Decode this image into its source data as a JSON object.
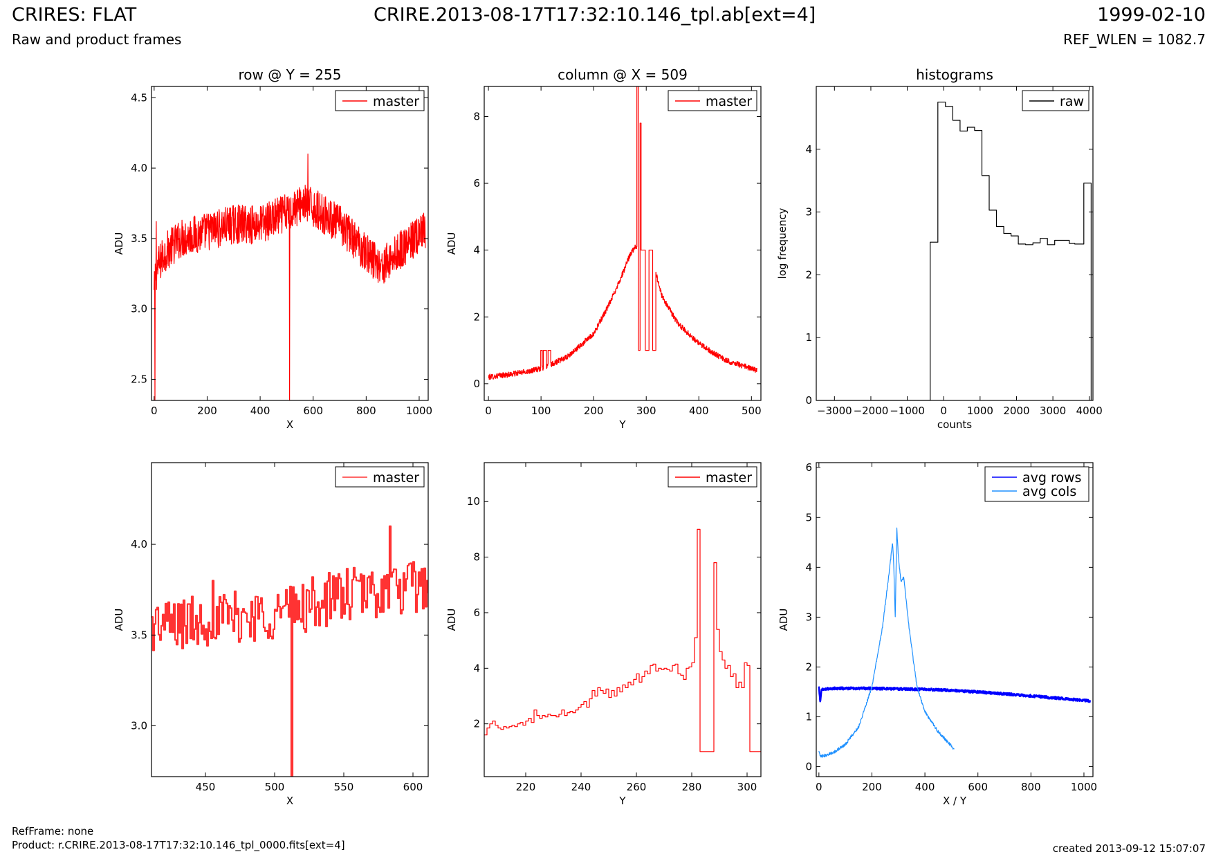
{
  "header": {
    "title_left": "CRIRES: FLAT",
    "subtitle_left": "Raw and product frames",
    "title_center": "CRIRE.2013-08-17T17:32:10.146_tpl.ab[ext=4]",
    "title_right": "1999-02-10",
    "subtitle_right": "REF_WLEN = 1082.7"
  },
  "footer": {
    "refframe": "RefFrame: none",
    "product": "Product: r.CRIRE.2013-08-17T17:32:10.146_tpl_0000.fits[ext=4]",
    "created": "created 2013-09-12 15:07:07"
  },
  "colors": {
    "master": "#ff0000",
    "master_zoom": "#ff3333",
    "raw": "#000000",
    "avg_rows": "#0000ff",
    "avg_cols": "#1e90ff"
  },
  "chart_data": [
    {
      "id": "row",
      "type": "line",
      "title": "row @ Y = 255",
      "xlabel": "X",
      "ylabel": "ADU",
      "xlim": [
        -10,
        1034
      ],
      "ylim": [
        2.35,
        4.58
      ],
      "xticks": [
        0,
        200,
        400,
        600,
        800,
        1000
      ],
      "yticks": [
        2.5,
        3.0,
        3.5,
        4.0,
        4.5
      ],
      "ytick_labels": [
        "2.5",
        "3.0",
        "3.5",
        "4.0",
        "4.5"
      ],
      "legend": "top-right",
      "series": [
        {
          "name": "master",
          "color": "#ff0000",
          "trend_x": [
            0,
            5,
            15,
            40,
            100,
            200,
            300,
            400,
            500,
            560,
            600,
            700,
            800,
            860,
            950,
            1023
          ],
          "trend_y": [
            3.1,
            3.25,
            3.3,
            3.4,
            3.5,
            3.55,
            3.6,
            3.6,
            3.68,
            3.75,
            3.72,
            3.6,
            3.4,
            3.3,
            3.45,
            3.55
          ],
          "noise": 0.14,
          "spikes": [
            {
              "x": 3,
              "y": 2.35
            },
            {
              "x": 8,
              "y": 3.62
            },
            {
              "x": 511,
              "y": 2.35
            },
            {
              "x": 580,
              "y": 4.1
            }
          ]
        }
      ]
    },
    {
      "id": "column",
      "type": "line",
      "title": "column @ X = 509",
      "xlabel": "Y",
      "ylabel": "ADU",
      "xlim": [
        -8,
        518
      ],
      "ylim": [
        -0.5,
        8.9
      ],
      "xticks": [
        0,
        100,
        200,
        300,
        400,
        500
      ],
      "yticks": [
        0,
        2,
        4,
        6,
        8
      ],
      "ytick_labels": [
        "0",
        "2",
        "4",
        "6",
        "8"
      ],
      "legend": "top-right",
      "series": [
        {
          "name": "master",
          "color": "#ff0000",
          "trend_x": [
            0,
            50,
            100,
            150,
            200,
            230,
            255,
            270,
            280,
            285,
            295,
            310,
            330,
            360,
            400,
            450,
            511
          ],
          "trend_y": [
            0.2,
            0.3,
            0.45,
            0.8,
            1.5,
            2.4,
            3.3,
            3.9,
            4.1,
            4.2,
            4.0,
            3.8,
            2.6,
            1.8,
            1.2,
            0.7,
            0.4
          ],
          "noise": 0.08,
          "step_segments": [
            {
              "x0": 99,
              "x1": 102,
              "y": 1.0
            },
            {
              "x0": 104,
              "x1": 110,
              "y": 1.0
            },
            {
              "x0": 113,
              "x1": 118,
              "y": 1.0
            },
            {
              "x0": 282,
              "x1": 285,
              "y": 9.0
            },
            {
              "x0": 285,
              "x1": 288,
              "y": 1.0
            },
            {
              "x0": 288,
              "x1": 290,
              "y": 7.8
            },
            {
              "x0": 290,
              "x1": 298,
              "y": 4.0
            },
            {
              "x0": 298,
              "x1": 305,
              "y": 1.0
            },
            {
              "x0": 305,
              "x1": 312,
              "y": 4.0
            },
            {
              "x0": 312,
              "x1": 318,
              "y": 1.0
            }
          ]
        }
      ]
    },
    {
      "id": "histograms",
      "type": "step",
      "title": "histograms",
      "xlabel": "counts",
      "ylabel": "log frequency",
      "xlim": [
        -3500,
        4100
      ],
      "ylim": [
        0,
        5.0
      ],
      "xticks": [
        -3000,
        -2000,
        -1000,
        0,
        1000,
        2000,
        3000,
        4000
      ],
      "yticks": [
        0,
        1,
        2,
        3,
        4
      ],
      "ytick_labels": [
        "0",
        "1",
        "2",
        "3",
        "4"
      ],
      "legend": "top-right",
      "series": [
        {
          "name": "raw",
          "color": "#000000",
          "x": [
            -3500,
            -370,
            -370,
            -160,
            -160,
            50,
            50,
            250,
            250,
            450,
            450,
            650,
            650,
            850,
            850,
            1050,
            1050,
            1250,
            1250,
            1450,
            1450,
            1650,
            1650,
            1850,
            1850,
            2050,
            2050,
            2250,
            2250,
            2450,
            2450,
            2650,
            2650,
            2850,
            2850,
            3050,
            3050,
            3450,
            3450,
            3600,
            3600,
            3850,
            3850,
            4050,
            4050
          ],
          "y": [
            0,
            0,
            2.52,
            2.52,
            4.75,
            4.75,
            4.68,
            4.68,
            4.46,
            4.46,
            4.29,
            4.29,
            4.35,
            4.35,
            4.3,
            4.3,
            3.58,
            3.58,
            3.03,
            3.03,
            2.77,
            2.77,
            2.66,
            2.66,
            2.62,
            2.62,
            2.49,
            2.49,
            2.48,
            2.48,
            2.51,
            2.51,
            2.58,
            2.58,
            2.48,
            2.48,
            2.55,
            2.55,
            2.5,
            2.5,
            2.49,
            2.49,
            3.46,
            3.46,
            0
          ]
        }
      ]
    },
    {
      "id": "row-zoom",
      "type": "step",
      "title": "",
      "xlabel": "X",
      "ylabel": "ADU",
      "xlim": [
        411,
        611
      ],
      "ylim": [
        2.72,
        4.45
      ],
      "xticks": [
        450,
        500,
        550,
        600
      ],
      "yticks": [
        3.0,
        3.5,
        4.0
      ],
      "ytick_labels": [
        "3.0",
        "3.5",
        "4.0"
      ],
      "legend": "top-right",
      "series": [
        {
          "name": "master",
          "color": "#ff3333",
          "trend_x": [
            411,
            450,
            500,
            550,
            600,
            611
          ],
          "trend_y": [
            3.55,
            3.58,
            3.62,
            3.72,
            3.76,
            3.78
          ],
          "noise": 0.15,
          "spikes": [
            {
              "x": 512,
              "y": 2.72
            },
            {
              "x": 583,
              "y": 4.1
            },
            {
              "x": 455,
              "y": 3.8
            }
          ]
        }
      ]
    },
    {
      "id": "column-zoom",
      "type": "step",
      "title": "",
      "xlabel": "Y",
      "ylabel": "ADU",
      "xlim": [
        205,
        305
      ],
      "ylim": [
        0.1,
        11.4
      ],
      "xticks": [
        220,
        240,
        260,
        280,
        300
      ],
      "yticks": [
        2,
        4,
        6,
        8,
        10
      ],
      "ytick_labels": [
        "2",
        "4",
        "6",
        "8",
        "10"
      ],
      "legend": "top-right",
      "series": [
        {
          "name": "master",
          "color": "#ff0000",
          "x": [
            205,
            206,
            207,
            208,
            209,
            210,
            211,
            212,
            213,
            214,
            215,
            216,
            217,
            218,
            219,
            220,
            221,
            222,
            223,
            224,
            225,
            226,
            227,
            228,
            229,
            230,
            231,
            232,
            233,
            234,
            235,
            236,
            237,
            238,
            239,
            240,
            241,
            242,
            243,
            244,
            245,
            246,
            247,
            248,
            249,
            250,
            251,
            252,
            253,
            254,
            255,
            256,
            257,
            258,
            259,
            260,
            261,
            262,
            263,
            264,
            265,
            266,
            267,
            268,
            269,
            270,
            271,
            272,
            273,
            274,
            275,
            276,
            277,
            278,
            279,
            280,
            281,
            282,
            283,
            284,
            285,
            286,
            287,
            288,
            289,
            290,
            291,
            292,
            293,
            294,
            295,
            296,
            297,
            298,
            299,
            300,
            301,
            302,
            303,
            304,
            305
          ],
          "y": [
            1.6,
            1.85,
            2.0,
            2.1,
            1.95,
            1.85,
            1.8,
            1.9,
            1.85,
            1.9,
            1.95,
            1.9,
            2.0,
            2.05,
            1.95,
            2.1,
            2.2,
            2.05,
            2.5,
            2.3,
            2.2,
            2.3,
            2.25,
            2.35,
            2.3,
            2.3,
            2.25,
            2.35,
            2.5,
            2.3,
            2.4,
            2.45,
            2.4,
            2.5,
            2.6,
            2.7,
            2.8,
            2.6,
            2.9,
            3.2,
            3.0,
            3.3,
            3.2,
            3.1,
            3.25,
            2.95,
            3.2,
            3.0,
            3.3,
            3.15,
            3.4,
            3.3,
            3.5,
            3.4,
            3.6,
            3.8,
            3.5,
            3.7,
            3.9,
            3.8,
            4.1,
            4.15,
            3.9,
            4.0,
            3.95,
            4.0,
            3.95,
            3.9,
            4.1,
            4.15,
            3.8,
            3.75,
            3.6,
            4.0,
            4.05,
            4.2,
            5.1,
            9.0,
            1.0,
            1.0,
            1.0,
            1.0,
            1.0,
            7.8,
            5.4,
            4.6,
            4.3,
            4.0,
            4.1,
            3.7,
            3.8,
            3.3,
            3.5,
            3.3,
            4.2,
            4.1,
            1.0,
            1.0,
            1.0,
            1.0,
            1.0
          ]
        }
      ]
    },
    {
      "id": "averages",
      "type": "line",
      "title": "",
      "xlabel": "X / Y",
      "ylabel": "ADU",
      "xlim": [
        -10,
        1034
      ],
      "ylim": [
        -0.2,
        6.1
      ],
      "xticks": [
        0,
        200,
        400,
        600,
        800,
        1000
      ],
      "yticks": [
        0,
        1,
        2,
        3,
        4,
        5,
        6
      ],
      "ytick_labels": [
        "0",
        "1",
        "2",
        "3",
        "4",
        "5",
        "6"
      ],
      "legend": "top-right",
      "series": [
        {
          "name": "avg rows",
          "color": "#0000ff",
          "trend_x": [
            0,
            5,
            10,
            50,
            200,
            400,
            500,
            600,
            800,
            1023
          ],
          "trend_y": [
            1.6,
            1.3,
            1.55,
            1.57,
            1.57,
            1.55,
            1.53,
            1.5,
            1.42,
            1.32
          ],
          "noise": 0.025
        },
        {
          "name": "avg cols",
          "color": "#1e90ff",
          "trend_x": [
            0,
            5,
            20,
            60,
            100,
            150,
            200,
            240,
            265,
            278,
            282,
            288,
            294,
            300,
            310,
            320,
            340,
            370,
            400,
            450,
            511
          ],
          "trend_y": [
            0.3,
            0.2,
            0.22,
            0.3,
            0.45,
            0.8,
            1.6,
            2.8,
            3.9,
            4.5,
            4.1,
            3.0,
            4.8,
            4.2,
            3.7,
            3.8,
            2.8,
            1.6,
            1.1,
            0.7,
            0.35
          ],
          "noise": 0.03
        }
      ]
    }
  ]
}
